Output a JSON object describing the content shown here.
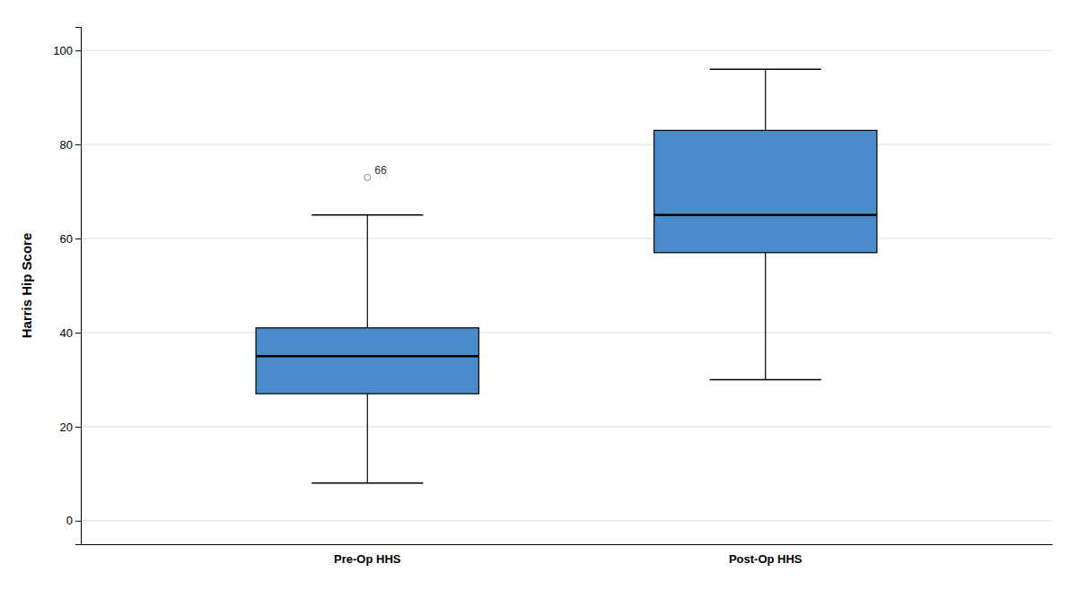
{
  "chart_data": {
    "type": "box",
    "categories": [
      "Pre-Op HHS",
      "Post-Op HHS"
    ],
    "boxes": [
      {
        "whislo": 8,
        "q1": 27,
        "med": 35,
        "q3": 41,
        "whishi": 65,
        "fliers": [
          73
        ]
      },
      {
        "whislo": 30,
        "q1": 57,
        "med": 65,
        "q3": 83,
        "whishi": 96,
        "fliers": []
      }
    ],
    "annotations": [
      {
        "text": "66"
      }
    ],
    "color": "#4C8BCA",
    "ylabel": "Harris Hip Score",
    "ylim": [
      -5,
      105
    ],
    "yticks": [
      0,
      20,
      40,
      60,
      80,
      100
    ],
    "grid": true
  }
}
